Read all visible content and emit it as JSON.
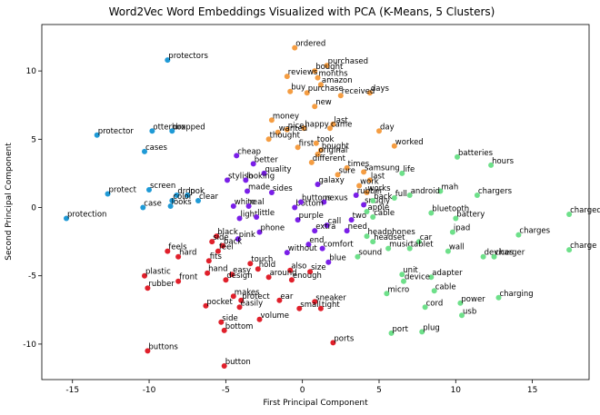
{
  "chart_data": {
    "type": "scatter",
    "title": "Word2Vec Word Embeddings Visualized with PCA (K-Means, 5 Clusters)",
    "xlabel": "First Principal Component",
    "ylabel": "Second Principal Component",
    "xlim": [
      -17,
      18.7
    ],
    "ylim": [
      -12.6,
      13.4
    ],
    "xticks": [
      -15,
      -10,
      -5,
      0,
      5,
      10,
      15
    ],
    "yticks": [
      -10,
      -5,
      0,
      5,
      10
    ],
    "grid": false,
    "legend": "none",
    "series": [
      {
        "color": "#1f9ad6",
        "points": [
          {
            "label": "protectors",
            "x": -8.8,
            "y": 10.8
          },
          {
            "label": "protector",
            "x": -13.4,
            "y": 5.3
          },
          {
            "label": "otterbox",
            "x": -9.8,
            "y": 5.6
          },
          {
            "label": "dropped",
            "x": -8.5,
            "y": 5.6
          },
          {
            "label": "cases",
            "x": -10.3,
            "y": 4.1
          },
          {
            "label": "screen",
            "x": -10.0,
            "y": 1.3
          },
          {
            "label": "drop",
            "x": -8.2,
            "y": 0.9
          },
          {
            "label": "look",
            "x": -7.5,
            "y": 0.9
          },
          {
            "label": "protect",
            "x": -12.7,
            "y": 1.0
          },
          {
            "label": "color",
            "x": -8.5,
            "y": 0.5
          },
          {
            "label": "clear",
            "x": -6.8,
            "y": 0.5
          },
          {
            "label": "case",
            "x": -10.4,
            "y": 0.0
          },
          {
            "label": "looks",
            "x": -8.6,
            "y": 0.1
          },
          {
            "label": "protection",
            "x": -15.4,
            "y": -0.8
          }
        ]
      },
      {
        "color": "#f59d42",
        "points": [
          {
            "label": "ordered",
            "x": -0.5,
            "y": 11.7
          },
          {
            "label": "purchased",
            "x": 1.6,
            "y": 10.4
          },
          {
            "label": "bought",
            "x": 0.8,
            "y": 10.0
          },
          {
            "label": "reviews",
            "x": -1.0,
            "y": 9.6
          },
          {
            "label": "months",
            "x": 1.0,
            "y": 9.5
          },
          {
            "label": "amazon",
            "x": 1.2,
            "y": 9.0
          },
          {
            "label": "buy",
            "x": -0.8,
            "y": 8.5
          },
          {
            "label": "purchase",
            "x": 0.3,
            "y": 8.4
          },
          {
            "label": "days",
            "x": 4.4,
            "y": 8.4
          },
          {
            "label": "received",
            "x": 2.5,
            "y": 8.2
          },
          {
            "label": "new",
            "x": 0.8,
            "y": 7.4
          },
          {
            "label": "money",
            "x": -2.0,
            "y": 6.4
          },
          {
            "label": "last",
            "x": 2.0,
            "y": 6.1
          },
          {
            "label": "came",
            "x": 1.8,
            "y": 5.8
          },
          {
            "label": "happy",
            "x": 0.1,
            "y": 5.8
          },
          {
            "label": "nice",
            "x": -1.0,
            "y": 5.7
          },
          {
            "label": "wanted",
            "x": -1.6,
            "y": 5.5
          },
          {
            "label": "day",
            "x": 5.0,
            "y": 5.6
          },
          {
            "label": "thought",
            "x": -2.2,
            "y": 5.0
          },
          {
            "label": "took",
            "x": 0.9,
            "y": 4.7
          },
          {
            "label": "worked",
            "x": 6.0,
            "y": 4.5
          },
          {
            "label": "first",
            "x": -0.3,
            "y": 4.4
          },
          {
            "label": "bought",
            "x": 1.2,
            "y": 4.2
          },
          {
            "label": "original",
            "x": 1.0,
            "y": 3.9
          },
          {
            "label": "different",
            "x": 0.6,
            "y": 3.3
          },
          {
            "label": "times",
            "x": 2.9,
            "y": 2.9
          },
          {
            "label": "samsung",
            "x": 4.0,
            "y": 2.6
          },
          {
            "label": "sure",
            "x": 2.3,
            "y": 2.4
          },
          {
            "label": "last",
            "x": 4.4,
            "y": 2.0
          },
          {
            "label": "work",
            "x": 3.7,
            "y": 1.6
          },
          {
            "label": "works",
            "x": 4.2,
            "y": 1.1
          }
        ]
      },
      {
        "color": "#7a1fe8",
        "points": [
          {
            "label": "cheap",
            "x": -4.3,
            "y": 3.8
          },
          {
            "label": "better",
            "x": -3.2,
            "y": 3.2
          },
          {
            "label": "quality",
            "x": -2.5,
            "y": 2.5
          },
          {
            "label": "stylish",
            "x": -4.9,
            "y": 2.0
          },
          {
            "label": "looking",
            "x": -3.7,
            "y": 2.0
          },
          {
            "label": "galaxy",
            "x": 1.0,
            "y": 1.7
          },
          {
            "label": "made",
            "x": -3.6,
            "y": 1.2
          },
          {
            "label": "sides",
            "x": -2.0,
            "y": 1.1
          },
          {
            "label": "white",
            "x": -4.5,
            "y": 0.1
          },
          {
            "label": "real",
            "x": -3.5,
            "y": 0.1
          },
          {
            "label": "nexus",
            "x": 1.4,
            "y": 0.4
          },
          {
            "label": "bottom",
            "x": -0.5,
            "y": 0.0
          },
          {
            "label": "buttons",
            "x": -0.1,
            "y": 0.4
          },
          {
            "label": "light",
            "x": -4.1,
            "y": -0.8
          },
          {
            "label": "little",
            "x": -3.0,
            "y": -0.7
          },
          {
            "label": "purple",
            "x": -0.3,
            "y": -0.9
          },
          {
            "label": "call",
            "x": 1.6,
            "y": -1.3
          },
          {
            "label": "two",
            "x": 3.2,
            "y": -0.9
          },
          {
            "label": "phone",
            "x": -2.8,
            "y": -1.8
          },
          {
            "label": "need",
            "x": 2.9,
            "y": -1.7
          },
          {
            "label": "extra",
            "x": 0.8,
            "y": -1.7
          },
          {
            "label": "pink",
            "x": -4.2,
            "y": -2.3
          },
          {
            "label": "end",
            "x": 0.4,
            "y": -2.7
          },
          {
            "label": "without",
            "x": -1.0,
            "y": -3.3
          },
          {
            "label": "comfort",
            "x": 1.3,
            "y": -3.0
          },
          {
            "label": "blue",
            "x": 1.7,
            "y": -4.0
          },
          {
            "label": "rubber",
            "x": 3.5,
            "y": 0.9
          },
          {
            "label": "snugly",
            "x": 4.0,
            "y": 0.2
          }
        ]
      },
      {
        "color": "#e0202b",
        "points": [
          {
            "label": "black",
            "x": -5.6,
            "y": -2.1
          },
          {
            "label": "side",
            "x": -5.9,
            "y": -2.5
          },
          {
            "label": "back",
            "x": -5.2,
            "y": -2.8
          },
          {
            "label": "feels",
            "x": -8.8,
            "y": -3.2
          },
          {
            "label": "feel",
            "x": -5.5,
            "y": -3.2
          },
          {
            "label": "hard",
            "x": -8.1,
            "y": -3.6
          },
          {
            "label": "fits",
            "x": -6.1,
            "y": -3.9
          },
          {
            "label": "hand",
            "x": -6.2,
            "y": -4.8
          },
          {
            "label": "touch",
            "x": -3.4,
            "y": -4.1
          },
          {
            "label": "hold",
            "x": -2.9,
            "y": -4.5
          },
          {
            "label": "also",
            "x": -0.8,
            "y": -4.6
          },
          {
            "label": "size",
            "x": 0.5,
            "y": -4.7
          },
          {
            "label": "easy",
            "x": -4.6,
            "y": -4.9
          },
          {
            "label": "design",
            "x": -5.0,
            "y": -5.3
          },
          {
            "label": "around",
            "x": -2.2,
            "y": -5.1
          },
          {
            "label": "enough",
            "x": -0.7,
            "y": -5.3
          },
          {
            "label": "plastic",
            "x": -10.3,
            "y": -5.0
          },
          {
            "label": "front",
            "x": -8.1,
            "y": -5.4
          },
          {
            "label": "rubber",
            "x": -10.1,
            "y": -5.9
          },
          {
            "label": "makes",
            "x": -4.5,
            "y": -6.5
          },
          {
            "label": "protect",
            "x": -4.0,
            "y": -6.8
          },
          {
            "label": "ear",
            "x": -1.5,
            "y": -6.8
          },
          {
            "label": "sneaker",
            "x": 0.8,
            "y": -6.9
          },
          {
            "label": "pocket",
            "x": -6.3,
            "y": -7.2
          },
          {
            "label": "easily",
            "x": -4.1,
            "y": -7.3
          },
          {
            "label": "small",
            "x": -0.2,
            "y": -7.4
          },
          {
            "label": "tight",
            "x": 1.2,
            "y": -7.4
          },
          {
            "label": "side",
            "x": -5.3,
            "y": -8.4
          },
          {
            "label": "volume",
            "x": -2.8,
            "y": -8.2
          },
          {
            "label": "bottom",
            "x": -5.1,
            "y": -9.0
          },
          {
            "label": "ports",
            "x": 2.0,
            "y": -9.9
          },
          {
            "label": "buttons",
            "x": -10.1,
            "y": -10.5
          },
          {
            "label": "button",
            "x": -5.1,
            "y": -11.6
          }
        ]
      },
      {
        "color": "#6ee08a",
        "points": [
          {
            "label": "batteries",
            "x": 10.1,
            "y": 3.7
          },
          {
            "label": "hours",
            "x": 12.3,
            "y": 3.1
          },
          {
            "label": "life",
            "x": 6.5,
            "y": 2.5
          },
          {
            "label": "mah",
            "x": 9.0,
            "y": 1.2
          },
          {
            "label": "android",
            "x": 7.0,
            "y": 0.9
          },
          {
            "label": "full",
            "x": 6.0,
            "y": 0.7
          },
          {
            "label": "back",
            "x": 4.6,
            "y": 0.5
          },
          {
            "label": "chargers",
            "x": 11.4,
            "y": 0.9
          },
          {
            "label": "charged",
            "x": 17.4,
            "y": -0.5
          },
          {
            "label": "battery",
            "x": 10.0,
            "y": -0.8
          },
          {
            "label": "bluetooth",
            "x": 8.4,
            "y": -0.4
          },
          {
            "label": "cable",
            "x": 4.6,
            "y": -0.7
          },
          {
            "label": "apple",
            "x": 4.2,
            "y": -0.3
          },
          {
            "label": "ipad",
            "x": 9.8,
            "y": -1.8
          },
          {
            "label": "charges",
            "x": 14.1,
            "y": -2.0
          },
          {
            "label": "headphones",
            "x": 4.2,
            "y": -2.1
          },
          {
            "label": "headset",
            "x": 4.6,
            "y": -2.5
          },
          {
            "label": "car",
            "x": 7.6,
            "y": -2.5
          },
          {
            "label": "music",
            "x": 5.6,
            "y": -3.0
          },
          {
            "label": "tablet",
            "x": 7.0,
            "y": -3.0
          },
          {
            "label": "wall",
            "x": 9.5,
            "y": -3.2
          },
          {
            "label": "charge",
            "x": 17.4,
            "y": -3.1
          },
          {
            "label": "devices",
            "x": 11.8,
            "y": -3.6
          },
          {
            "label": "charger",
            "x": 12.5,
            "y": -3.6
          },
          {
            "label": "sound",
            "x": 3.6,
            "y": -3.6
          },
          {
            "label": "unit",
            "x": 6.5,
            "y": -4.9
          },
          {
            "label": "adapter",
            "x": 8.4,
            "y": -5.1
          },
          {
            "label": "device",
            "x": 6.6,
            "y": -5.4
          },
          {
            "label": "cable",
            "x": 8.6,
            "y": -6.1
          },
          {
            "label": "micro",
            "x": 5.5,
            "y": -6.3
          },
          {
            "label": "charging",
            "x": 12.8,
            "y": -6.6
          },
          {
            "label": "power",
            "x": 10.3,
            "y": -7.0
          },
          {
            "label": "cord",
            "x": 8.0,
            "y": -7.3
          },
          {
            "label": "usb",
            "x": 10.4,
            "y": -7.9
          },
          {
            "label": "port",
            "x": 5.8,
            "y": -9.2
          },
          {
            "label": "plug",
            "x": 7.8,
            "y": -9.1
          }
        ]
      }
    ]
  }
}
